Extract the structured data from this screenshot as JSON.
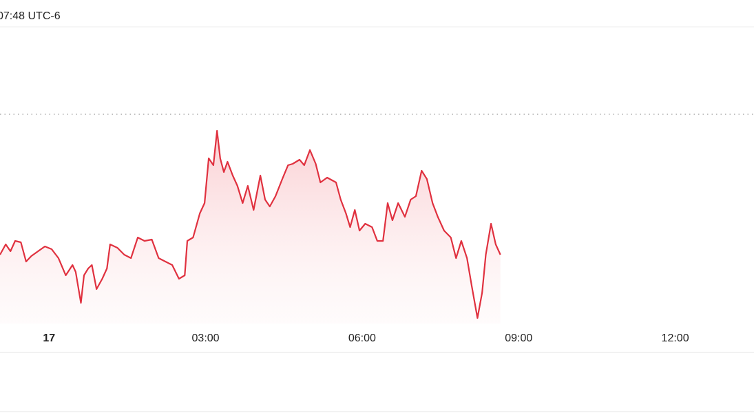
{
  "chart_data": {
    "type": "line",
    "subtitle": "07:48 UTC-6",
    "x": [
      -0.94,
      -0.83,
      -0.74,
      -0.65,
      -0.54,
      -0.44,
      -0.34,
      -0.21,
      -0.08,
      0.05,
      0.18,
      0.32,
      0.45,
      0.51,
      0.61,
      0.67,
      0.75,
      0.82,
      0.91,
      1.02,
      1.11,
      1.17,
      1.31,
      1.44,
      1.57,
      1.7,
      1.83,
      1.97,
      2.1,
      2.23,
      2.36,
      2.49,
      2.6,
      2.65,
      2.76,
      2.89,
      2.98,
      3.06,
      3.15,
      3.22,
      3.28,
      3.35,
      3.42,
      3.52,
      3.61,
      3.71,
      3.81,
      3.92,
      4.05,
      4.14,
      4.23,
      4.34,
      4.47,
      4.58,
      4.67,
      4.8,
      4.89,
      5.0,
      5.11,
      5.2,
      5.33,
      5.5,
      5.59,
      5.69,
      5.77,
      5.86,
      5.95,
      6.06,
      6.19,
      6.29,
      6.4,
      6.49,
      6.58,
      6.69,
      6.82,
      6.93,
      7.03,
      7.14,
      7.24,
      7.35,
      7.45,
      7.57,
      7.7,
      7.8,
      7.9,
      8.01,
      8.1,
      8.21,
      8.3,
      8.37,
      8.47,
      8.56,
      8.65
    ],
    "values": [
      25,
      28.75,
      26.25,
      30,
      29.5,
      22.5,
      24.5,
      26.25,
      28,
      27,
      23.75,
      17.5,
      21.25,
      18.75,
      7.5,
      17.5,
      20,
      21.25,
      12.5,
      16.25,
      20,
      28.75,
      27.5,
      25,
      23.75,
      31.25,
      30,
      30.5,
      23.75,
      22.5,
      21.25,
      16.25,
      17.5,
      30,
      31.25,
      40,
      43.75,
      60,
      57.5,
      70,
      60,
      55,
      58.75,
      53.75,
      50,
      43.75,
      50,
      41.25,
      53.75,
      45,
      42.5,
      46.25,
      52.5,
      57.5,
      58,
      59.5,
      57.5,
      63,
      58,
      51.25,
      53,
      51.25,
      45,
      40,
      35,
      41.25,
      33.75,
      36.25,
      35,
      30,
      30,
      43.75,
      37.5,
      43.75,
      38.75,
      45,
      46.25,
      55.5,
      52.5,
      43.75,
      38.75,
      33.75,
      31.25,
      23.75,
      30,
      23.75,
      13.75,
      2,
      11.25,
      25,
      36.25,
      28.75,
      25
    ],
    "color": "#e0313f",
    "reference": 76,
    "xlim": [
      -0.94,
      13.51
    ],
    "ylim": [
      0,
      107.5
    ],
    "xticks": [
      {
        "value": 0,
        "label": "17"
      },
      {
        "value": 3,
        "label": "03:00"
      },
      {
        "value": 6,
        "label": "06:00"
      },
      {
        "value": 9,
        "label": "09:00"
      },
      {
        "value": 12,
        "label": "12:00"
      }
    ]
  }
}
